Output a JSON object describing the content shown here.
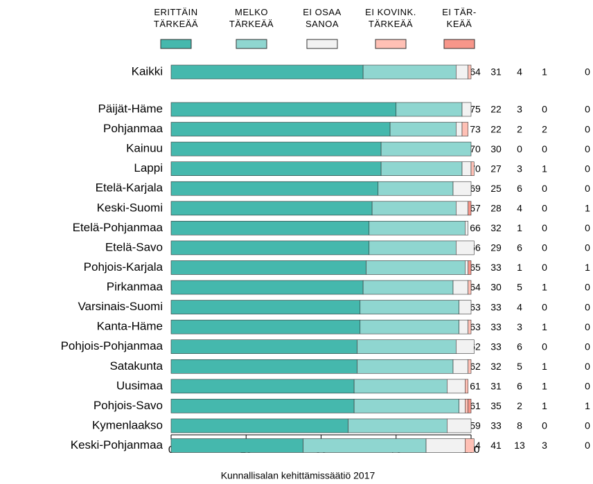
{
  "chart_data": {
    "type": "bar",
    "orientation": "horizontal",
    "stacked": true,
    "caption": "Kunnallisalan kehittämissäätiö 2017",
    "categories": [
      "Kaikki",
      "Päijät-Häme",
      "Pohjanmaa",
      "Kainuu",
      "Lappi",
      "Etelä-Karjala",
      "Keski-Suomi",
      "Etelä-Pohjanmaa",
      "Etelä-Savo",
      "Pohjois-Karjala",
      "Pirkanmaa",
      "Varsinais-Suomi",
      "Kanta-Häme",
      "Pohjois-Pohjanmaa",
      "Satakunta",
      "Uusimaa",
      "Pohjois-Savo",
      "Kymenlaakso",
      "Keski-Pohjanmaa"
    ],
    "series": [
      {
        "name": "ERITTÄIN\nTÄRKEÄÄ",
        "color": "#45b8ad",
        "values": [
          64,
          75,
          73,
          70,
          70,
          69,
          67,
          66,
          66,
          65,
          64,
          63,
          63,
          62,
          62,
          61,
          61,
          59,
          44
        ]
      },
      {
        "name": "MELKO\nTÄRKEÄÄ",
        "color": "#8fd6d0",
        "values": [
          31,
          22,
          22,
          30,
          27,
          25,
          28,
          32,
          29,
          33,
          30,
          33,
          33,
          33,
          32,
          31,
          35,
          33,
          41
        ]
      },
      {
        "name": "EI OSAA\nSANOA",
        "color": "#f2f2f2",
        "values": [
          4,
          3,
          2,
          0,
          3,
          6,
          4,
          1,
          6,
          1,
          5,
          4,
          3,
          6,
          5,
          6,
          2,
          8,
          13
        ]
      },
      {
        "name": "EI KOVINK.\nTÄRKEÄÄ",
        "color": "#ffc0b5",
        "values": [
          1,
          0,
          2,
          0,
          1,
          0,
          0,
          0,
          0,
          0,
          1,
          0,
          1,
          0,
          1,
          1,
          1,
          0,
          3
        ]
      },
      {
        "name": "EI TÄR-\nKEÄÄ",
        "color": "#f7968a",
        "values": [
          0,
          0,
          0,
          0,
          0,
          0,
          1,
          0,
          0,
          1,
          0,
          0,
          0,
          0,
          0,
          0,
          1,
          0,
          0
        ]
      }
    ],
    "xlim": [
      0,
      100
    ],
    "xticks": [
      0,
      25,
      50,
      75,
      100
    ]
  }
}
